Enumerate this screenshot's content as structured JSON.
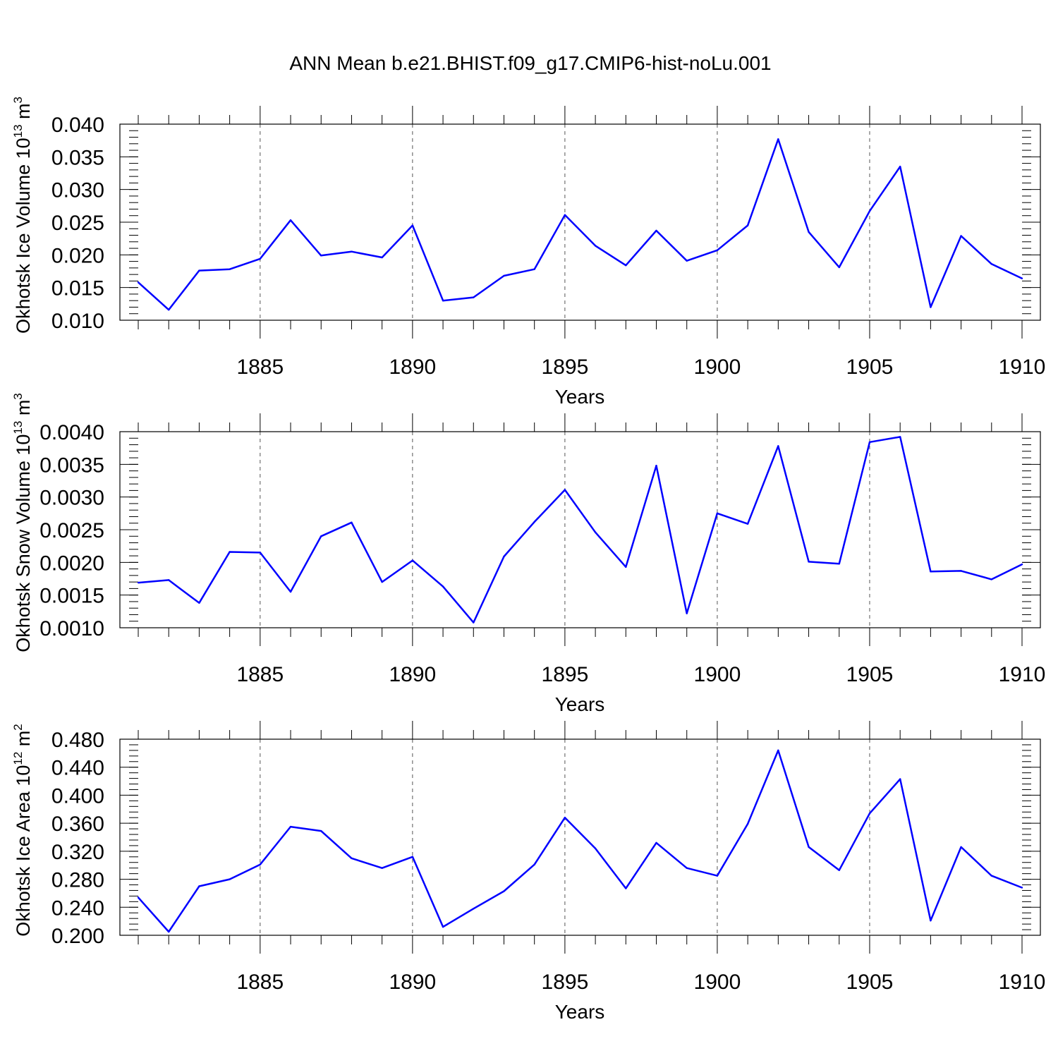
{
  "title": "ANN Mean b.e21.BHIST.f09_g17.CMIP6-hist-noLu.001",
  "line_color": "#0000ff",
  "chart_data": [
    {
      "type": "line",
      "ylabel_main": "Okhotsk Ice Volume 10",
      "ylabel_exp": "13",
      "ylabel_unit": " m",
      "ylabel_unit_exp": "3",
      "xlabel": "Years",
      "x": [
        1881,
        1882,
        1883,
        1884,
        1885,
        1886,
        1887,
        1888,
        1889,
        1890,
        1891,
        1892,
        1893,
        1894,
        1895,
        1896,
        1897,
        1898,
        1899,
        1900,
        1901,
        1902,
        1903,
        1904,
        1905,
        1906,
        1907,
        1908,
        1909,
        1910
      ],
      "values": [
        0.0158,
        0.0116,
        0.0176,
        0.0178,
        0.0194,
        0.0253,
        0.0199,
        0.0205,
        0.0196,
        0.0245,
        0.013,
        0.0135,
        0.0168,
        0.0178,
        0.0261,
        0.0214,
        0.0184,
        0.0237,
        0.0191,
        0.0207,
        0.0245,
        0.0377,
        0.0235,
        0.0181,
        0.0267,
        0.0335,
        0.012,
        0.0229,
        0.0186,
        0.0164
      ],
      "xlim": [
        1881,
        1910
      ],
      "ylim": [
        0.01,
        0.04
      ],
      "ytick_labels": [
        "0.010",
        "0.015",
        "0.020",
        "0.025",
        "0.030",
        "0.035",
        "0.040"
      ],
      "xtick_labels": [
        "1885",
        "1890",
        "1895",
        "1900",
        "1905",
        "1910"
      ]
    },
    {
      "type": "line",
      "ylabel_main": "Okhotsk Snow Volume 10",
      "ylabel_exp": "13",
      "ylabel_unit": " m",
      "ylabel_unit_exp": "3",
      "xlabel": "Years",
      "x": [
        1881,
        1882,
        1883,
        1884,
        1885,
        1886,
        1887,
        1888,
        1889,
        1890,
        1891,
        1892,
        1893,
        1894,
        1895,
        1896,
        1897,
        1898,
        1899,
        1900,
        1901,
        1902,
        1903,
        1904,
        1905,
        1906,
        1907,
        1908,
        1909,
        1910
      ],
      "values": [
        0.00169,
        0.00173,
        0.00138,
        0.00216,
        0.00215,
        0.00155,
        0.0024,
        0.00261,
        0.0017,
        0.00203,
        0.00163,
        0.00108,
        0.00209,
        0.00262,
        0.00311,
        0.00246,
        0.00193,
        0.00348,
        0.00122,
        0.00275,
        0.00259,
        0.00378,
        0.00201,
        0.00198,
        0.00384,
        0.00392,
        0.00186,
        0.00187,
        0.00174,
        0.00197
      ],
      "xlim": [
        1881,
        1910
      ],
      "ylim": [
        0.001,
        0.004
      ],
      "ytick_labels": [
        "0.0010",
        "0.0015",
        "0.0020",
        "0.0025",
        "0.0030",
        "0.0035",
        "0.0040"
      ],
      "xtick_labels": [
        "1885",
        "1890",
        "1895",
        "1900",
        "1905",
        "1910"
      ]
    },
    {
      "type": "line",
      "ylabel_main": "Okhotsk Ice Area 10",
      "ylabel_exp": "12",
      "ylabel_unit": " m",
      "ylabel_unit_exp": "2",
      "xlabel": "Years",
      "x": [
        1881,
        1882,
        1883,
        1884,
        1885,
        1886,
        1887,
        1888,
        1889,
        1890,
        1891,
        1892,
        1893,
        1894,
        1895,
        1896,
        1897,
        1898,
        1899,
        1900,
        1901,
        1902,
        1903,
        1904,
        1905,
        1906,
        1907,
        1908,
        1909,
        1910
      ],
      "values": [
        0.254,
        0.205,
        0.27,
        0.28,
        0.301,
        0.355,
        0.349,
        0.31,
        0.296,
        0.312,
        0.212,
        0.238,
        0.263,
        0.301,
        0.368,
        0.324,
        0.267,
        0.332,
        0.296,
        0.285,
        0.359,
        0.464,
        0.326,
        0.293,
        0.374,
        0.423,
        0.221,
        0.326,
        0.285,
        0.268
      ],
      "xlim": [
        1881,
        1910
      ],
      "ylim": [
        0.2,
        0.48
      ],
      "ytick_labels": [
        "0.200",
        "0.240",
        "0.280",
        "0.320",
        "0.360",
        "0.400",
        "0.440",
        "0.480"
      ],
      "xtick_labels": [
        "1885",
        "1890",
        "1895",
        "1900",
        "1905",
        "1910"
      ]
    }
  ]
}
